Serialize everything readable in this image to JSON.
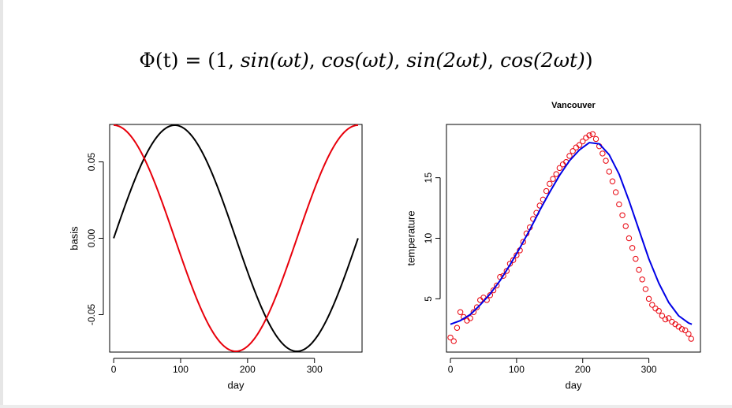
{
  "formula": {
    "lhs": "Φ(t) = (1, ",
    "t1": "sin(ωt)",
    "t2": "cos(ωt)",
    "t3": "sin(2ωt)",
    "t4": "cos(2ωt)",
    "sep": ", ",
    "rhs": ")"
  },
  "chart_data": [
    {
      "type": "line",
      "title": "",
      "xlabel": "day",
      "ylabel": "basis",
      "xlim": [
        -6,
        371
      ],
      "ylim": [
        -0.0745,
        0.0745
      ],
      "x_ticks": [
        0,
        100,
        200,
        300
      ],
      "y_ticks": [
        -0.05,
        0.0,
        0.05
      ],
      "y_tick_labels": [
        "-0.05",
        "0.00",
        "0.05"
      ],
      "grid": false,
      "series": [
        {
          "color": "#000000",
          "function": "sin(2*pi*day/365)",
          "amplitude": 0.074,
          "x_range": [
            0,
            365
          ],
          "description": "sine basis"
        },
        {
          "color": "#e8000b",
          "function": "cos(2*pi*day/365)",
          "amplitude": 0.074,
          "x_range": [
            0,
            365
          ],
          "description": "cosine basis"
        }
      ]
    },
    {
      "type": "scatter",
      "title": "Vancouver",
      "xlabel": "day",
      "ylabel": "temperature",
      "xlim": [
        -6,
        378
      ],
      "ylim": [
        0.6,
        19.4
      ],
      "x_ticks": [
        0,
        100,
        200,
        300
      ],
      "y_ticks": [
        5,
        10,
        15
      ],
      "grid": false,
      "series": [
        {
          "kind": "points",
          "marker": "open-circle",
          "color": "#e8000b",
          "x": [
            0,
            5,
            10,
            15,
            20,
            25,
            30,
            35,
            40,
            45,
            50,
            55,
            60,
            65,
            70,
            75,
            80,
            85,
            90,
            95,
            100,
            105,
            110,
            115,
            120,
            125,
            130,
            135,
            140,
            145,
            150,
            155,
            160,
            165,
            170,
            175,
            180,
            185,
            190,
            195,
            200,
            205,
            210,
            215,
            220,
            225,
            230,
            235,
            240,
            245,
            250,
            255,
            260,
            265,
            270,
            275,
            280,
            285,
            290,
            295,
            300,
            305,
            310,
            315,
            320,
            325,
            330,
            335,
            340,
            345,
            350,
            355,
            360,
            364
          ],
          "y": [
            1.8,
            1.5,
            2.6,
            3.9,
            3.5,
            3.2,
            3.4,
            3.9,
            4.3,
            4.9,
            5.1,
            4.9,
            5.3,
            5.7,
            6.1,
            6.8,
            6.9,
            7.3,
            7.9,
            8.2,
            8.6,
            9.0,
            9.7,
            10.4,
            10.9,
            11.6,
            12.1,
            12.7,
            13.2,
            13.9,
            14.5,
            14.9,
            15.3,
            15.8,
            16.1,
            16.3,
            16.8,
            17.2,
            17.5,
            17.7,
            18.0,
            18.3,
            18.5,
            18.6,
            18.2,
            17.6,
            17.0,
            16.4,
            15.5,
            14.7,
            13.8,
            12.8,
            11.9,
            11.0,
            10.0,
            9.2,
            8.3,
            7.4,
            6.6,
            5.8,
            5.0,
            4.5,
            4.2,
            4.0,
            3.6,
            3.3,
            3.4,
            3.1,
            2.9,
            2.7,
            2.5,
            2.4,
            2.1,
            1.7
          ]
        },
        {
          "kind": "fit",
          "color": "#0000e6",
          "x": [
            0,
            15,
            30,
            45,
            60,
            75,
            90,
            105,
            120,
            135,
            150,
            165,
            180,
            195,
            210,
            225,
            240,
            255,
            270,
            285,
            300,
            315,
            330,
            345,
            360,
            365
          ],
          "y": [
            2.9,
            3.2,
            3.7,
            4.5,
            5.4,
            6.5,
            7.8,
            9.2,
            10.7,
            12.3,
            13.8,
            15.2,
            16.4,
            17.3,
            17.9,
            17.8,
            16.9,
            15.3,
            13.1,
            10.7,
            8.3,
            6.3,
            4.7,
            3.6,
            3.0,
            2.9
          ]
        }
      ]
    }
  ]
}
